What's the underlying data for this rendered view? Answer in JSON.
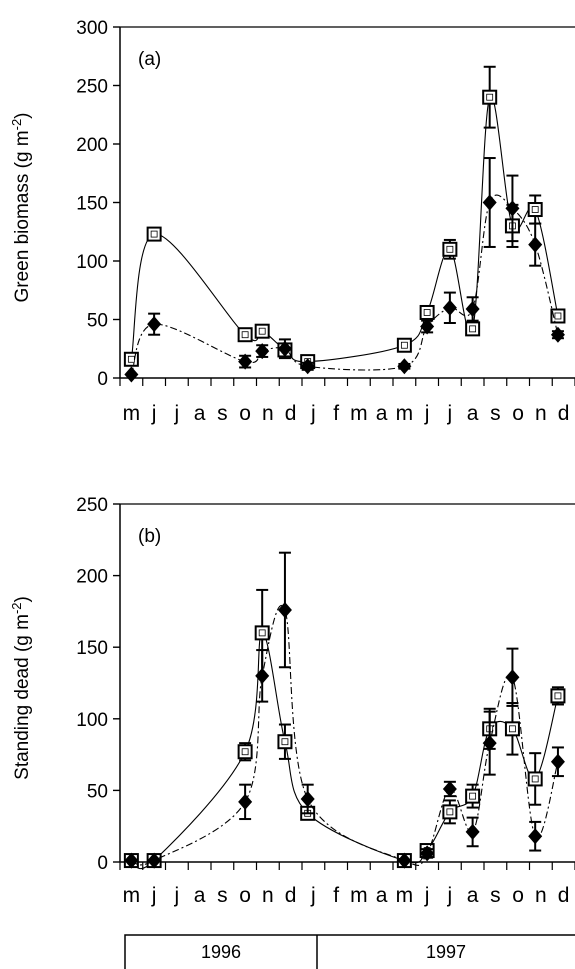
{
  "months": [
    "m",
    "j",
    "j",
    "a",
    "s",
    "o",
    "n",
    "d",
    "j",
    "f",
    "m",
    "a",
    "m",
    "j",
    "j",
    "a",
    "s",
    "o",
    "n",
    "d"
  ],
  "years": [
    "1996",
    "1997"
  ],
  "chart_data": [
    {
      "type": "line",
      "panel_label": "(a)",
      "ylabel": "Green biomass (g m",
      "ylabel_sup": "-2",
      "ylabel_end": ")",
      "ylim": [
        0,
        300
      ],
      "yticks": [
        0,
        50,
        100,
        150,
        200,
        250,
        300
      ],
      "x_unit": "month index from May 1996",
      "series": [
        {
          "marker": "open-square",
          "line": "solid",
          "points": [
            {
              "x": 0.0,
              "y": 16,
              "err": 0
            },
            {
              "x": 1.0,
              "y": 123,
              "err": 3
            },
            {
              "x": 5.0,
              "y": 37,
              "err": 5
            },
            {
              "x": 5.75,
              "y": 40,
              "err": 5
            },
            {
              "x": 6.75,
              "y": 24,
              "err": 5
            },
            {
              "x": 7.75,
              "y": 14,
              "err": 3
            },
            {
              "x": 12.0,
              "y": 28,
              "err": 3
            },
            {
              "x": 13.0,
              "y": 56,
              "err": 5
            },
            {
              "x": 14.0,
              "y": 110,
              "err": 8
            },
            {
              "x": 15.0,
              "y": 42,
              "err": 5
            },
            {
              "x": 15.75,
              "y": 240,
              "err": 26
            },
            {
              "x": 16.75,
              "y": 130,
              "err": 18
            },
            {
              "x": 17.75,
              "y": 144,
              "err": 12
            },
            {
              "x": 18.75,
              "y": 53,
              "err": 3
            }
          ]
        },
        {
          "marker": "filled-diamond",
          "line": "dash-dot",
          "points": [
            {
              "x": 0.0,
              "y": 3,
              "err": 0
            },
            {
              "x": 1.0,
              "y": 46,
              "err": 9
            },
            {
              "x": 5.0,
              "y": 14,
              "err": 5
            },
            {
              "x": 5.75,
              "y": 23,
              "err": 5
            },
            {
              "x": 6.75,
              "y": 25,
              "err": 8
            },
            {
              "x": 7.75,
              "y": 10,
              "err": 3
            },
            {
              "x": 12.0,
              "y": 10,
              "err": 2
            },
            {
              "x": 13.0,
              "y": 44,
              "err": 5
            },
            {
              "x": 14.0,
              "y": 60,
              "err": 13
            },
            {
              "x": 15.0,
              "y": 59,
              "err": 10
            },
            {
              "x": 15.75,
              "y": 150,
              "err": 38
            },
            {
              "x": 16.75,
              "y": 145,
              "err": 28
            },
            {
              "x": 17.75,
              "y": 114,
              "err": 18
            },
            {
              "x": 18.75,
              "y": 37,
              "err": 3
            }
          ]
        }
      ]
    },
    {
      "type": "line",
      "panel_label": "(b)",
      "ylabel": "Standing dead (g m",
      "ylabel_sup": "-2",
      "ylabel_end": ")",
      "ylim": [
        0,
        250
      ],
      "yticks": [
        0,
        50,
        100,
        150,
        200,
        250
      ],
      "x_unit": "month index from May 1996",
      "series": [
        {
          "marker": "open-square",
          "line": "solid",
          "points": [
            {
              "x": 0.0,
              "y": 1,
              "err": 0
            },
            {
              "x": 1.0,
              "y": 1,
              "err": 0
            },
            {
              "x": 5.0,
              "y": 77,
              "err": 6
            },
            {
              "x": 5.75,
              "y": 160,
              "err": 30
            },
            {
              "x": 6.75,
              "y": 84,
              "err": 12
            },
            {
              "x": 7.75,
              "y": 34,
              "err": 3
            },
            {
              "x": 12.0,
              "y": 1,
              "err": 0
            },
            {
              "x": 13.0,
              "y": 8,
              "err": 4
            },
            {
              "x": 14.0,
              "y": 35,
              "err": 8
            },
            {
              "x": 15.0,
              "y": 46,
              "err": 8
            },
            {
              "x": 15.75,
              "y": 93,
              "err": 14
            },
            {
              "x": 16.75,
              "y": 93,
              "err": 18
            },
            {
              "x": 17.75,
              "y": 58,
              "err": 18
            },
            {
              "x": 18.75,
              "y": 116,
              "err": 6
            }
          ]
        },
        {
          "marker": "filled-diamond",
          "line": "dash-dot",
          "points": [
            {
              "x": 0.0,
              "y": 1,
              "err": 0
            },
            {
              "x": 1.0,
              "y": 1,
              "err": 0
            },
            {
              "x": 5.0,
              "y": 42,
              "err": 12
            },
            {
              "x": 5.75,
              "y": 130,
              "err": 18
            },
            {
              "x": 6.75,
              "y": 176,
              "err": 40
            },
            {
              "x": 7.75,
              "y": 44,
              "err": 10
            },
            {
              "x": 12.0,
              "y": 1,
              "err": 0
            },
            {
              "x": 13.0,
              "y": 6,
              "err": 3
            },
            {
              "x": 14.0,
              "y": 51,
              "err": 5
            },
            {
              "x": 15.0,
              "y": 21,
              "err": 10
            },
            {
              "x": 15.75,
              "y": 83,
              "err": 22
            },
            {
              "x": 16.75,
              "y": 129,
              "err": 20
            },
            {
              "x": 17.75,
              "y": 18,
              "err": 10
            },
            {
              "x": 18.75,
              "y": 70,
              "err": 10
            }
          ]
        }
      ]
    }
  ]
}
